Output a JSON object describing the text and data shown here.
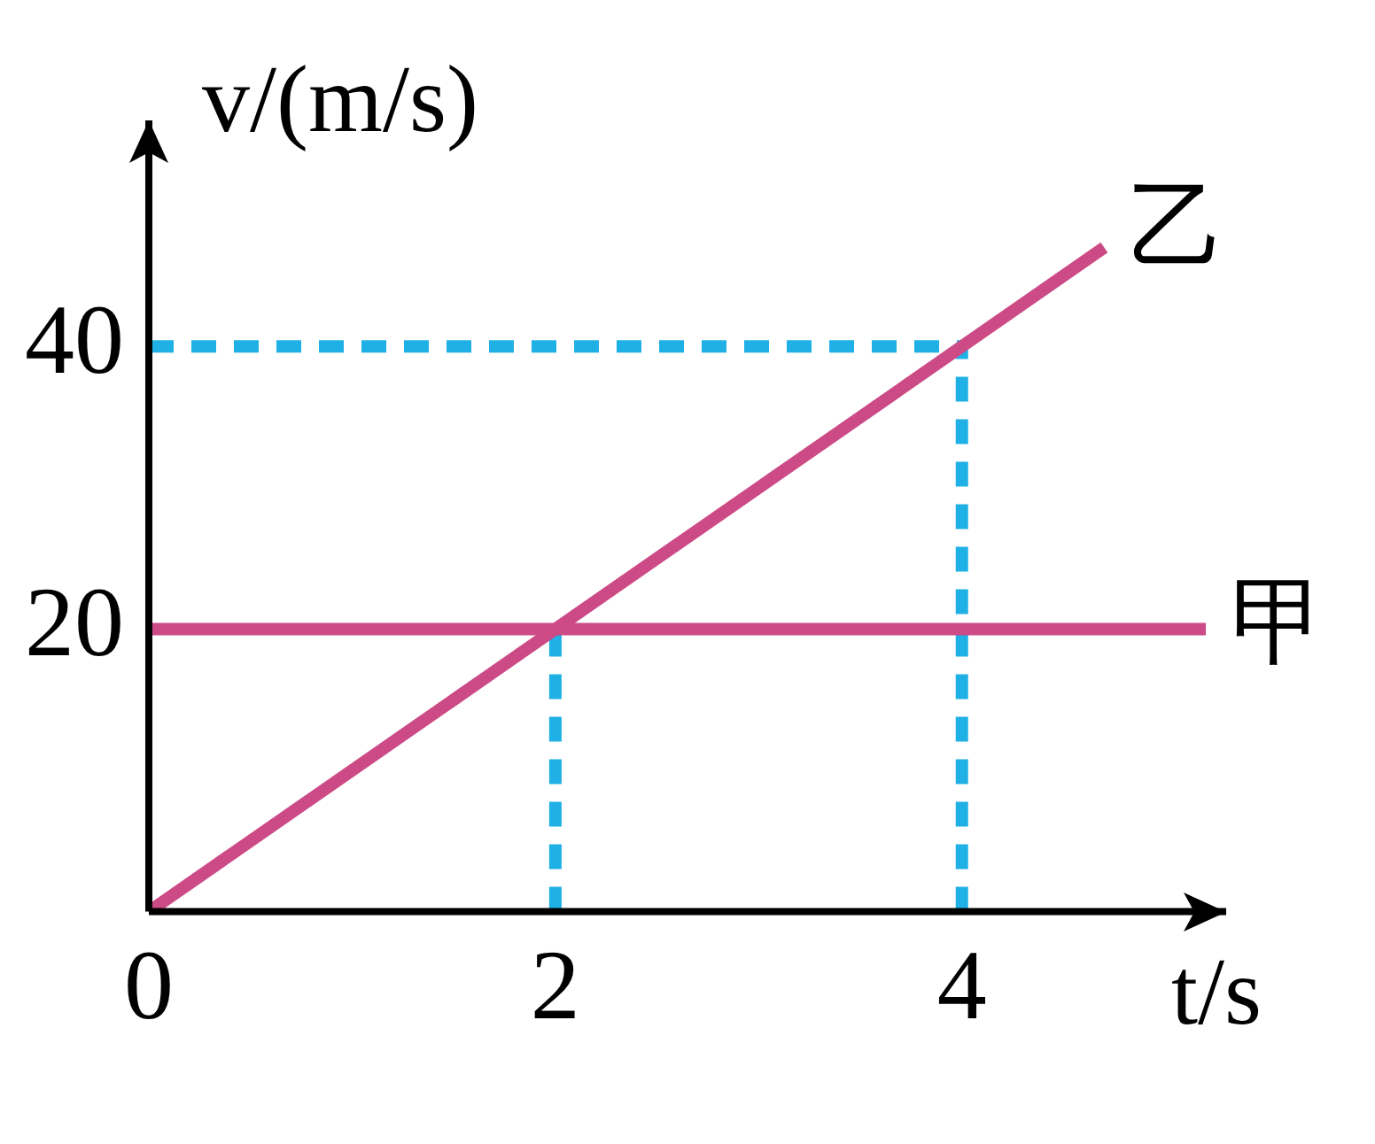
{
  "chart_data": {
    "type": "line",
    "xlabel": "t/s",
    "ylabel": "v/(m/s)",
    "xlim": [
      0,
      5.3
    ],
    "ylim": [
      0,
      56
    ],
    "xticks": [
      0,
      2,
      4
    ],
    "yticks": [
      20,
      40
    ],
    "grid": false,
    "legend": false,
    "marker": "none",
    "line_style": "solid",
    "series": [
      {
        "name": "甲",
        "color": "#cc4a86",
        "x": [
          0,
          5.2
        ],
        "values": [
          20,
          20
        ]
      },
      {
        "name": "乙",
        "color": "#cc4a86",
        "x": [
          0,
          4.7
        ],
        "values": [
          0,
          47
        ]
      },
      {
        "color": "#1fb0e6",
        "line_style": "dashed",
        "x": [
          0,
          4
        ],
        "values": [
          40,
          40
        ]
      },
      {
        "color": "#1fb0e6",
        "line_style": "dashed",
        "x": [
          4,
          4
        ],
        "values": [
          0,
          40
        ]
      },
      {
        "color": "#1fb0e6",
        "line_style": "dashed",
        "x": [
          2,
          2
        ],
        "values": [
          0,
          20
        ]
      }
    ]
  }
}
